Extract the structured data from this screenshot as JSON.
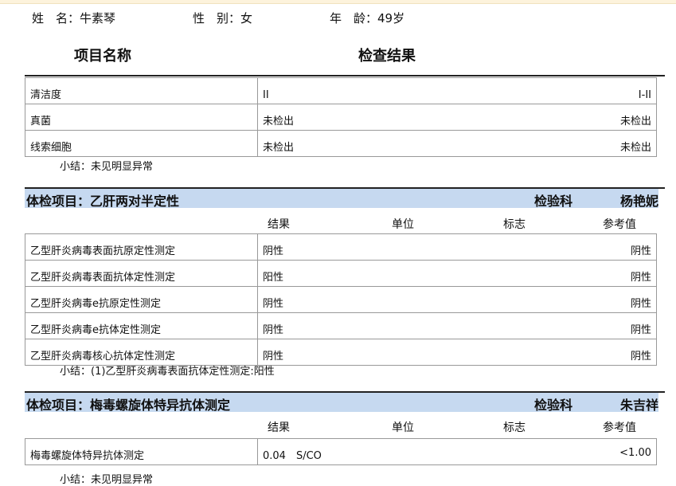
{
  "patient": {
    "name_label": "姓　名：",
    "name": "牛素琴",
    "gender_label": "性　别：",
    "gender": "女",
    "age_label": "年　龄：",
    "age": "49岁"
  },
  "headers": {
    "item_name": "项目名称",
    "result": "检查结果"
  },
  "section1": {
    "rows": [
      {
        "name": "清洁度",
        "result": "II",
        "ref": "I-II"
      },
      {
        "name": "真菌",
        "result": "未检出",
        "ref": "未检出"
      },
      {
        "name": "线索细胞",
        "result": "未检出",
        "ref": "未检出"
      }
    ],
    "summary": "小结：未见明显异常"
  },
  "section2": {
    "title": "体检项目：乙肝两对半定性",
    "dept": "检验科",
    "doctor": "杨艳妮",
    "columns": {
      "result": "结果",
      "unit": "单位",
      "flag": "标志",
      "ref": "参考值"
    },
    "rows": [
      {
        "name": "乙型肝炎病毒表面抗原定性测定",
        "result": "阴性",
        "ref": "阴性"
      },
      {
        "name": "乙型肝炎病毒表面抗体定性测定",
        "result": "阳性",
        "ref": "阴性"
      },
      {
        "name": "乙型肝炎病毒e抗原定性测定",
        "result": "阴性",
        "ref": "阴性"
      },
      {
        "name": "乙型肝炎病毒e抗体定性测定",
        "result": "阴性",
        "ref": "阴性"
      },
      {
        "name": "乙型肝炎病毒核心抗体定性测定",
        "result": "阴性",
        "ref": "阴性"
      }
    ],
    "summary": "小结：(1)乙型肝炎病毒表面抗体定性测定:阳性"
  },
  "section3": {
    "title": "体检项目：梅毒螺旋体特异抗体测定",
    "dept": "检验科",
    "doctor": "朱吉祥",
    "columns": {
      "result": "结果",
      "unit": "单位",
      "flag": "标志",
      "ref": "参考值"
    },
    "rows": [
      {
        "name": "梅毒螺旋体特异抗体测定",
        "result": "0.04　S/CO",
        "ref": "<1.00"
      }
    ],
    "summary": "小结：未见明显异常"
  },
  "colors": {
    "band": "#c6d9f0"
  }
}
